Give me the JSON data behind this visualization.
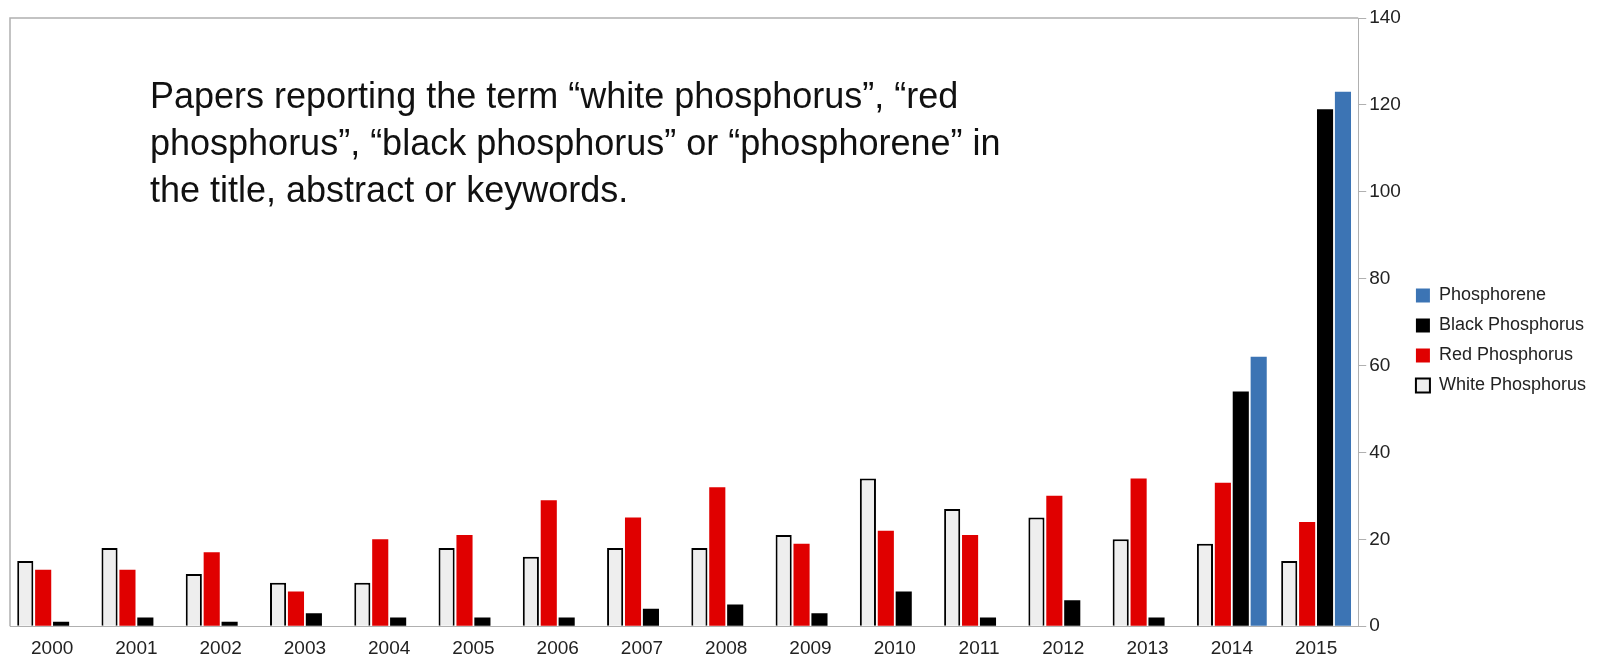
{
  "chart_data": {
    "type": "bar",
    "annotations": [
      "Papers reporting the term “white phosphorus”, “red phosphorus”, “black phosphorus” or “phosphorene” in the title, abstract or keywords."
    ],
    "categories": [
      "2000",
      "2001",
      "2002",
      "2003",
      "2004",
      "2005",
      "2006",
      "2007",
      "2008",
      "2009",
      "2010",
      "2011",
      "2012",
      "2013",
      "2014",
      "2015"
    ],
    "series": [
      {
        "name": "White Phosphorus",
        "color": "#eeeeee",
        "values": [
          15,
          18,
          12,
          10,
          10,
          18,
          16,
          18,
          18,
          21,
          34,
          27,
          25,
          20,
          19,
          15
        ]
      },
      {
        "name": "Red Phosphorus",
        "color": "#e00000",
        "values": [
          13,
          13,
          17,
          8,
          20,
          21,
          29,
          25,
          32,
          19,
          22,
          21,
          30,
          34,
          33,
          24
        ]
      },
      {
        "name": "Black Phosphorus",
        "color": "#000000",
        "values": [
          1,
          2,
          1,
          3,
          2,
          2,
          2,
          4,
          5,
          3,
          8,
          2,
          6,
          2,
          54,
          119
        ]
      },
      {
        "name": "Phosphorene",
        "color": "#3c74b4",
        "values": [
          null,
          null,
          null,
          null,
          null,
          null,
          null,
          null,
          null,
          null,
          null,
          null,
          null,
          null,
          62,
          123
        ]
      }
    ],
    "ylim": [
      0,
      140
    ],
    "yticks": [
      0,
      20,
      40,
      60,
      80,
      100,
      120,
      140
    ],
    "legend": "right",
    "grid": false
  }
}
